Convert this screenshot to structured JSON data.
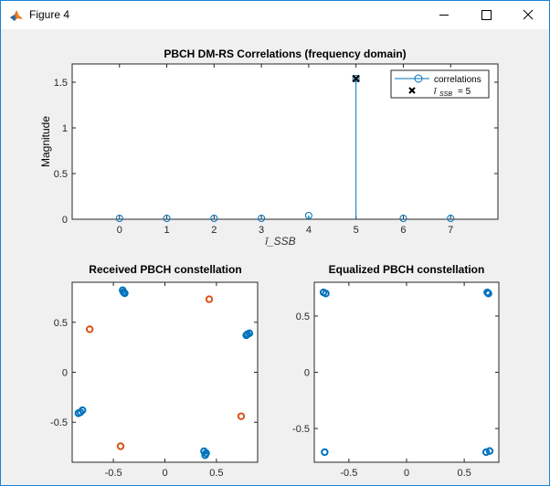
{
  "window": {
    "title": "Figure 4",
    "app_icon": "matlab-icon",
    "controls": {
      "minimize": "minimize-icon",
      "maximize": "maximize-icon",
      "close": "close-icon"
    }
  },
  "colors": {
    "blue": "#0072bd",
    "orange": "#d95319",
    "window_border": "#1883d7"
  },
  "chart_data": [
    {
      "type": "stem",
      "title": "PBCH DM-RS Correlations (frequency domain)",
      "xlabel": "ī_SSB",
      "ylabel": "Magnitude",
      "xlim": [
        -1,
        8
      ],
      "ylim": [
        0,
        1.7
      ],
      "xticks": [
        0,
        1,
        2,
        3,
        4,
        5,
        6,
        7
      ],
      "xtick_labels": [
        "0",
        "1",
        "2",
        "3",
        "4",
        "5",
        "6",
        "7"
      ],
      "yticks": [
        0,
        0.5,
        1,
        1.5
      ],
      "ytick_labels": [
        "0",
        "0.5",
        "1",
        "1.5"
      ],
      "series": [
        {
          "name": "correlations",
          "x": [
            0,
            1,
            2,
            3,
            4,
            5,
            6,
            7
          ],
          "y": [
            0.01,
            0.01,
            0.01,
            0.01,
            0.04,
            1.54,
            0.01,
            0.01
          ]
        },
        {
          "name": "ī_SSB = 5",
          "x": [
            5
          ],
          "y": [
            1.54
          ],
          "marker": "x"
        }
      ],
      "legend": {
        "placement": "top-right",
        "entries": [
          "correlations",
          "ī",
          "SSB",
          "= 5"
        ]
      }
    },
    {
      "type": "scatter",
      "title": "Received PBCH constellation",
      "xlim": [
        -0.9,
        0.9
      ],
      "ylim": [
        -0.9,
        0.9
      ],
      "xticks": [
        -0.5,
        0,
        0.5
      ],
      "xtick_labels": [
        "-0.5",
        "0",
        "0.5"
      ],
      "yticks": [
        -0.5,
        0,
        0.5
      ],
      "ytick_labels": [
        "-0.5",
        "0",
        "0.5"
      ],
      "series": [
        {
          "color": "blue",
          "x": [
            -0.41,
            -0.39,
            -0.4,
            0.8,
            0.82,
            0.79,
            -0.82,
            -0.8,
            -0.84,
            0.38,
            0.4,
            0.39
          ],
          "y": [
            0.82,
            0.79,
            0.8,
            0.38,
            0.39,
            0.37,
            -0.4,
            -0.38,
            -0.41,
            -0.79,
            -0.81,
            -0.83
          ]
        },
        {
          "color": "orange",
          "x": [
            -0.73,
            0.43,
            0.74,
            -0.43
          ],
          "y": [
            0.43,
            0.73,
            -0.44,
            -0.74
          ]
        }
      ]
    },
    {
      "type": "scatter",
      "title": "Equalized PBCH constellation",
      "xlim": [
        -0.8,
        0.8
      ],
      "ylim": [
        -0.8,
        0.8
      ],
      "xticks": [
        -0.5,
        0,
        0.5
      ],
      "xtick_labels": [
        "-0.5",
        "0",
        "0.5"
      ],
      "yticks": [
        -0.5,
        0,
        0.5
      ],
      "ytick_labels": [
        "-0.5",
        "0",
        "0.5"
      ],
      "series": [
        {
          "color": "blue",
          "x": [
            -0.72,
            -0.7,
            0.7,
            0.71,
            -0.71,
            0.69,
            0.72
          ],
          "y": [
            0.71,
            0.7,
            0.71,
            0.7,
            -0.71,
            -0.71,
            -0.7
          ]
        }
      ]
    }
  ]
}
